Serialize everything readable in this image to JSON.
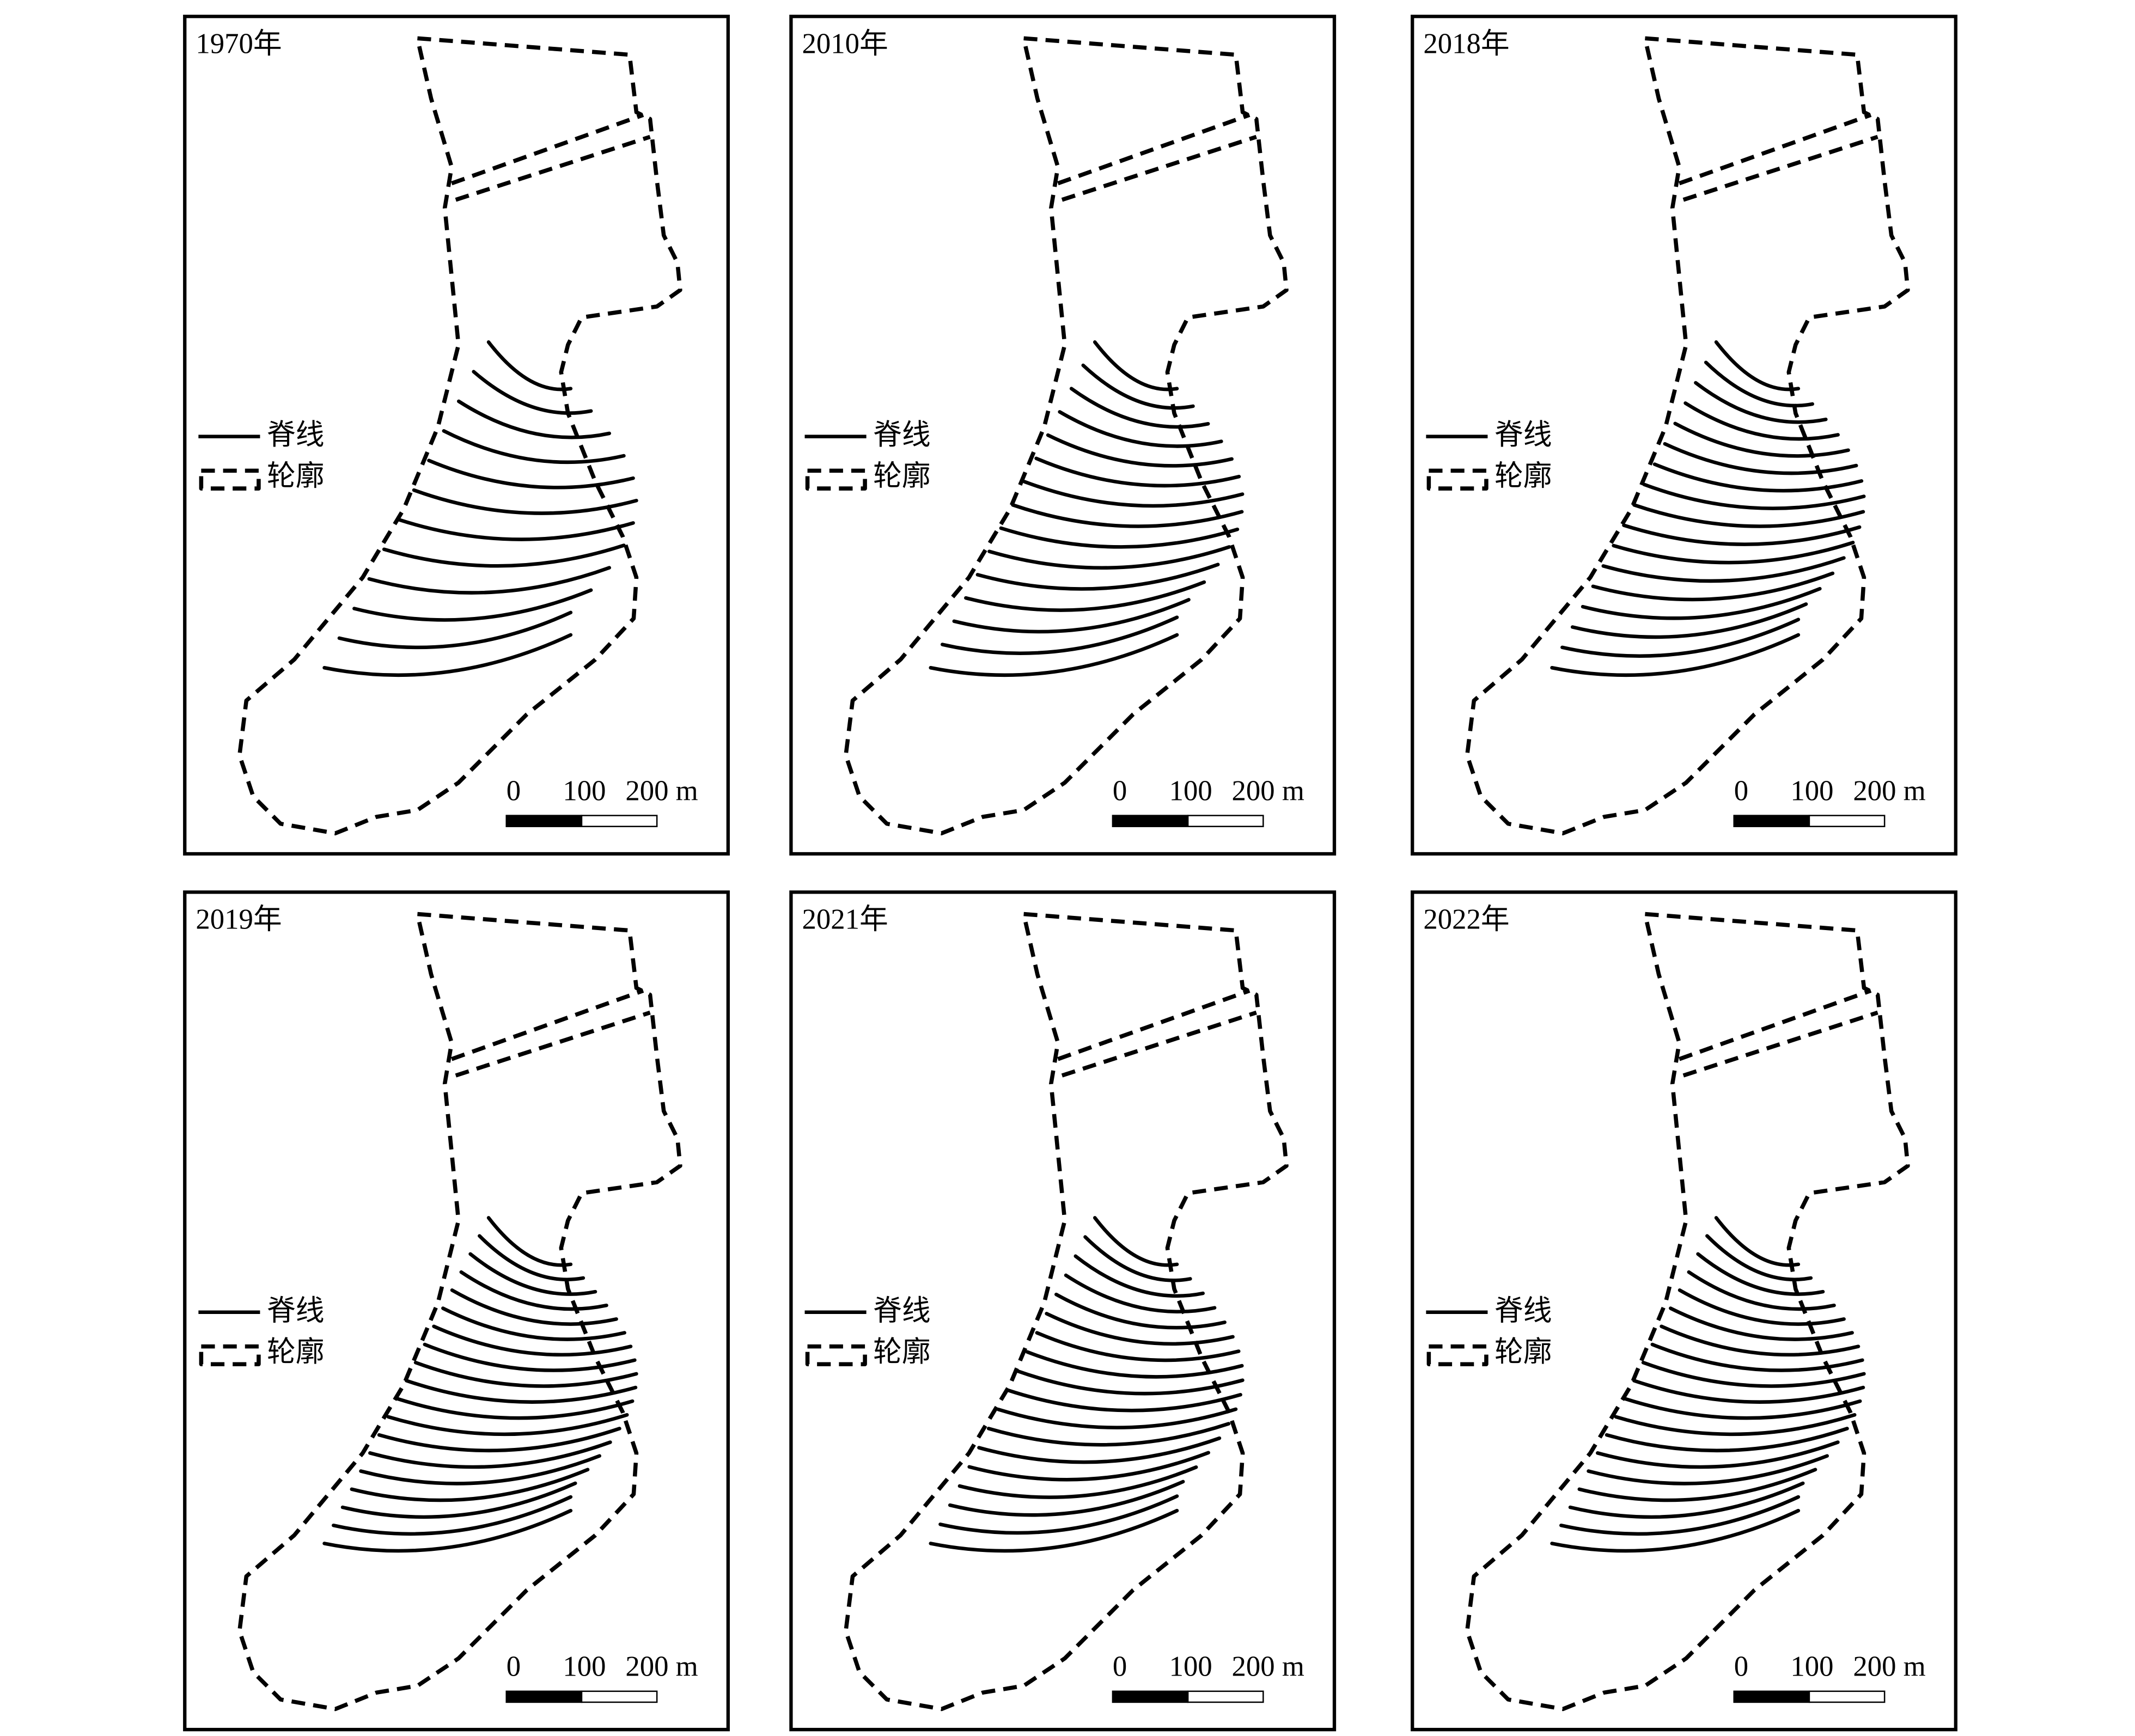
{
  "panels": [
    {
      "title": "1970年"
    },
    {
      "title": "2010年"
    },
    {
      "title": "2018年"
    },
    {
      "title": "2019年"
    },
    {
      "title": "2021年"
    },
    {
      "title": "2022年"
    }
  ],
  "legend": {
    "ridge": "脊线",
    "outline": "轮廓"
  },
  "scale_labels": [
    "0",
    "100",
    "200 m"
  ]
}
